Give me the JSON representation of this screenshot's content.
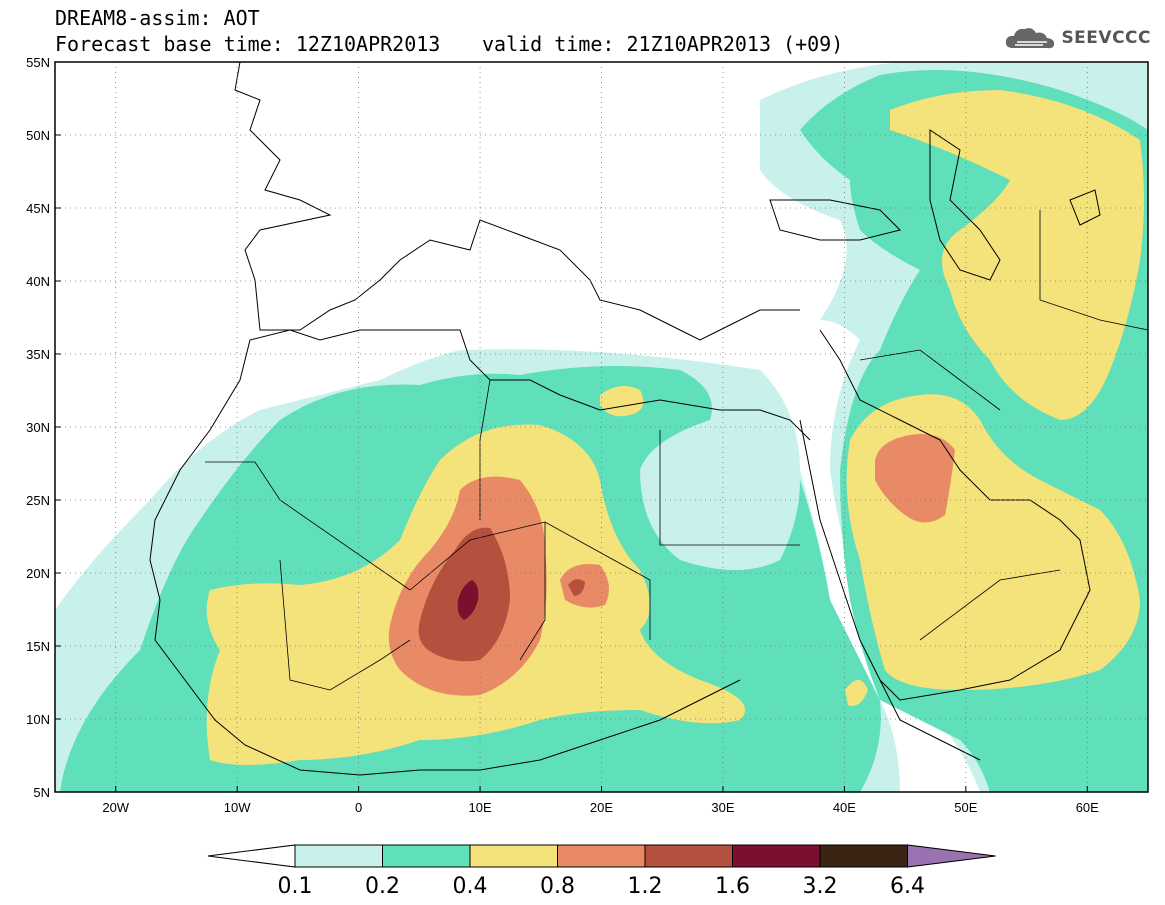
{
  "header": {
    "line1": "DREAM8-assim: AOT",
    "line2": "Forecast base time: 12Z10APR2013",
    "valid": "valid time: 21Z10APR2013 (+09)"
  },
  "logo": {
    "text": "SEEVCCC",
    "icon": "cloud-icon"
  },
  "map": {
    "lat_labels": [
      "55N",
      "50N",
      "45N",
      "40N",
      "35N",
      "30N",
      "25N",
      "20N",
      "15N",
      "10N",
      "5N"
    ],
    "lon_labels": [
      "20W",
      "10W",
      "0",
      "10E",
      "20E",
      "30E",
      "40E",
      "50E",
      "60E"
    ],
    "lat_range": [
      5,
      55
    ],
    "lon_range": [
      -25,
      65
    ],
    "grid": true
  },
  "colorbar": {
    "labels": [
      "0.1",
      "0.2",
      "0.4",
      "0.8",
      "1.2",
      "1.6",
      "3.2",
      "6.4"
    ],
    "colors": [
      "#c9f1ec",
      "#5fdfba",
      "#f4e27a",
      "#e88a66",
      "#b5503f",
      "#7b0f2e",
      "#3a2414",
      "#9a72b2"
    ],
    "under_color": "#ffffff"
  },
  "field": {
    "levels": [
      0.1,
      0.2,
      0.4,
      0.8,
      1.2,
      1.6
    ],
    "colors": [
      "#c9f1ec",
      "#5fdfba",
      "#f4e27a",
      "#e88a66",
      "#b5503f",
      "#7b0f2e"
    ]
  }
}
